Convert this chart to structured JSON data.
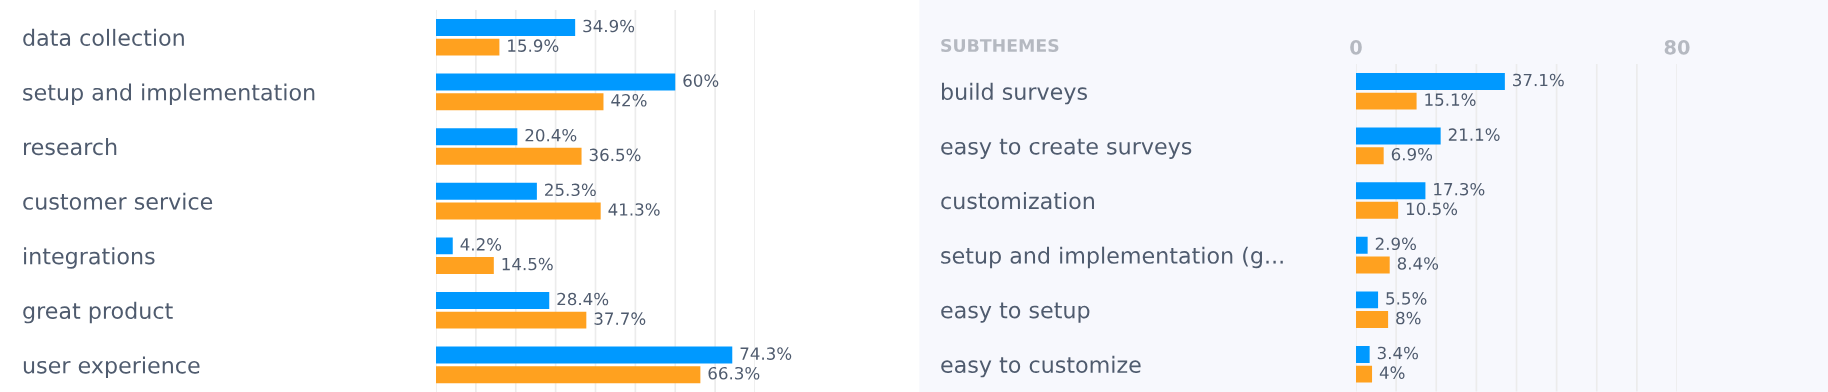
{
  "chart_data": [
    {
      "type": "bar",
      "orientation": "horizontal",
      "categories": [
        "data collection",
        "setup and implementation",
        "research",
        "customer service",
        "integrations",
        "great product",
        "user experience"
      ],
      "series": [
        {
          "color": "#0099ff",
          "values": [
            34.9,
            60,
            20.4,
            25.3,
            4.2,
            28.4,
            74.3
          ],
          "value_labels": [
            "34.9%",
            "60%",
            "20.4%",
            "25.3%",
            "4.2%",
            "28.4%",
            "74.3%"
          ]
        },
        {
          "color": "#ffa11f",
          "values": [
            15.9,
            42,
            36.5,
            41.3,
            14.5,
            37.7,
            66.3
          ],
          "value_labels": [
            "15.9%",
            "42%",
            "36.5%",
            "41.3%",
            "14.5%",
            "37.7%",
            "66.3%"
          ]
        }
      ],
      "xlim": [
        0,
        80
      ],
      "xticks": [
        {
          "value": 0,
          "label": null
        },
        {
          "value": 10,
          "label": null
        },
        {
          "value": 20,
          "label": null
        },
        {
          "value": 30,
          "label": null
        },
        {
          "value": 40,
          "label": null
        },
        {
          "value": 50,
          "label": null
        },
        {
          "value": 60,
          "label": null
        },
        {
          "value": 70,
          "label": null
        },
        {
          "value": 80,
          "label": null
        }
      ],
      "grid": "x",
      "tick_labels": "y"
    },
    {
      "type": "bar",
      "orientation": "horizontal",
      "title": "SUBTHEMES",
      "categories": [
        "build surveys",
        "easy to create surveys",
        "customization",
        "setup and implementation (g...",
        "easy to setup",
        "easy to customize"
      ],
      "series": [
        {
          "color": "#0099ff",
          "values": [
            37.1,
            21.1,
            17.3,
            2.9,
            5.5,
            3.4
          ],
          "value_labels": [
            "37.1%",
            "21.1%",
            "17.3%",
            "2.9%",
            "5.5%",
            "3.4%"
          ]
        },
        {
          "color": "#ffa11f",
          "values": [
            15.1,
            6.9,
            10.5,
            8.4,
            8,
            4
          ],
          "value_labels": [
            "15.1%",
            "6.9%",
            "10.5%",
            "8.4%",
            "8%",
            "4%"
          ]
        }
      ],
      "xlim": [
        0,
        80
      ],
      "xticks": [
        0,
        {
          "value": 10,
          "label": null
        },
        {
          "value": 20,
          "label": null
        },
        {
          "value": 30,
          "label": null
        },
        {
          "value": 40,
          "label": null
        },
        {
          "value": 50,
          "label": null
        },
        {
          "value": 60,
          "label": null
        },
        {
          "value": 70,
          "label": null
        },
        80
      ],
      "grid": "x"
    }
  ]
}
